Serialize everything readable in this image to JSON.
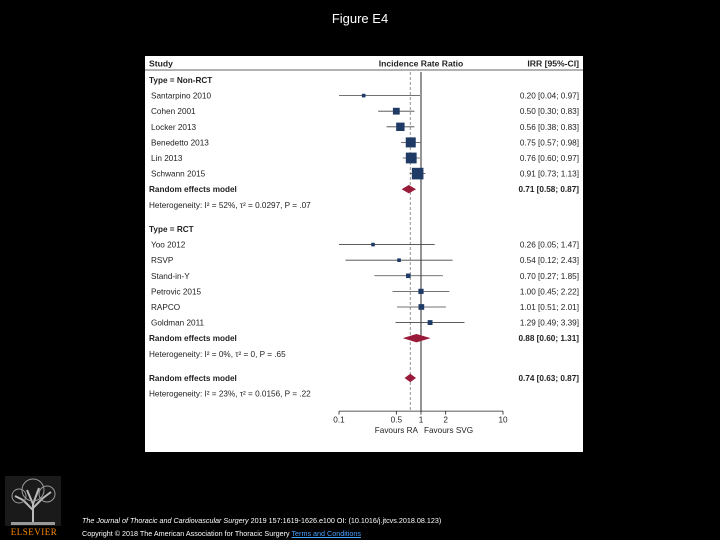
{
  "figure_title": "Figure E4",
  "citation": {
    "journal": "The Journal of Thoracic and Cardiovascular Surgery",
    "details": "2019 157:1619-1626.e100 OI: (10.1016/j.jtcvs.2018.08.123)",
    "copyright": "Copyright © 2018 The American Association for Thoracic Surgery",
    "terms_link": "Terms and Conditions"
  },
  "logo": {
    "text": "ELSEVIER",
    "icon": "elsevier-tree-icon"
  },
  "colors": {
    "square": "#1f3a64",
    "diamond": "#9a1a3a",
    "ci_line": "#444444",
    "ref_line": "#888888"
  },
  "chart_data": {
    "type": "forest",
    "headers": {
      "study": "Study",
      "effect": "Incidence Rate Ratio",
      "ci": "IRR [95%-CI]"
    },
    "x_axis": {
      "scale": "log",
      "ticks": [
        0.1,
        0.5,
        1,
        2,
        10
      ],
      "tick_labels": [
        "0.1",
        "0.5",
        "1",
        "2",
        "10"
      ],
      "xlim": [
        0.1,
        10
      ],
      "left_label": "Favours RA",
      "right_label": "Favours SVG",
      "pooled_reference": 0.74
    },
    "rows": [
      {
        "kind": "group",
        "label": "Type = Non-RCT"
      },
      {
        "kind": "study",
        "label": "Santarpino 2010",
        "est": 0.2,
        "lo": 0.04,
        "hi": 0.97,
        "weight": 1,
        "ci": "0.20 [0.04; 0.97]"
      },
      {
        "kind": "study",
        "label": "Cohen 2001",
        "est": 0.5,
        "lo": 0.3,
        "hi": 0.83,
        "weight": 3,
        "ci": "0.50 [0.30; 0.83]"
      },
      {
        "kind": "study",
        "label": "Locker 2013",
        "est": 0.56,
        "lo": 0.38,
        "hi": 0.83,
        "weight": 4,
        "ci": "0.56 [0.38; 0.83]"
      },
      {
        "kind": "study",
        "label": "Benedetto 2013",
        "est": 0.75,
        "lo": 0.57,
        "hi": 0.98,
        "weight": 5,
        "ci": "0.75 [0.57; 0.98]"
      },
      {
        "kind": "study",
        "label": "Lin 2013",
        "est": 0.76,
        "lo": 0.6,
        "hi": 0.97,
        "weight": 5.5,
        "ci": "0.76 [0.60; 0.97]"
      },
      {
        "kind": "study",
        "label": "Schwann 2015",
        "est": 0.91,
        "lo": 0.73,
        "hi": 1.13,
        "weight": 6,
        "ci": "0.91 [0.73; 1.13]"
      },
      {
        "kind": "pooled",
        "label": "Random effects model",
        "est": 0.71,
        "lo": 0.58,
        "hi": 0.87,
        "ci": "0.71 [0.58; 0.87]"
      },
      {
        "kind": "het",
        "label": "Heterogeneity: I² = 52%, τ² = 0.0297, P = .07"
      },
      {
        "kind": "spacer"
      },
      {
        "kind": "group",
        "label": "Type = RCT"
      },
      {
        "kind": "study",
        "label": "Yoo 2012",
        "est": 0.26,
        "lo": 0.05,
        "hi": 1.47,
        "weight": 1,
        "ci": "0.26 [0.05; 1.47]"
      },
      {
        "kind": "study",
        "label": "RSVP",
        "est": 0.54,
        "lo": 0.12,
        "hi": 2.43,
        "weight": 1,
        "ci": "0.54 [0.12; 2.43]"
      },
      {
        "kind": "study",
        "label": "Stand-in-Y",
        "est": 0.7,
        "lo": 0.27,
        "hi": 1.85,
        "weight": 1.6,
        "ci": "0.70 [0.27; 1.85]"
      },
      {
        "kind": "study",
        "label": "Petrovic 2015",
        "est": 1.0,
        "lo": 0.45,
        "hi": 2.22,
        "weight": 2,
        "ci": "1.00 [0.45; 2.22]"
      },
      {
        "kind": "study",
        "label": "RAPCO",
        "est": 1.01,
        "lo": 0.51,
        "hi": 2.01,
        "weight": 2.3,
        "ci": "1.01 [0.51; 2.01]"
      },
      {
        "kind": "study",
        "label": "Goldman 2011",
        "est": 1.29,
        "lo": 0.49,
        "hi": 3.39,
        "weight": 1.8,
        "ci": "1.29 [0.49; 3.39]"
      },
      {
        "kind": "pooled",
        "label": "Random effects model",
        "est": 0.88,
        "lo": 0.6,
        "hi": 1.31,
        "ci": "0.88 [0.60; 1.31]"
      },
      {
        "kind": "het",
        "label": "Heterogeneity: I² = 0%, τ² = 0, P = .65"
      },
      {
        "kind": "spacer"
      },
      {
        "kind": "pooled",
        "label": "Random effects model",
        "est": 0.74,
        "lo": 0.63,
        "hi": 0.87,
        "ci": "0.74 [0.63; 0.87]"
      },
      {
        "kind": "het",
        "label": "Heterogeneity: I² = 23%, τ² = 0.0156, P = .22"
      }
    ]
  }
}
